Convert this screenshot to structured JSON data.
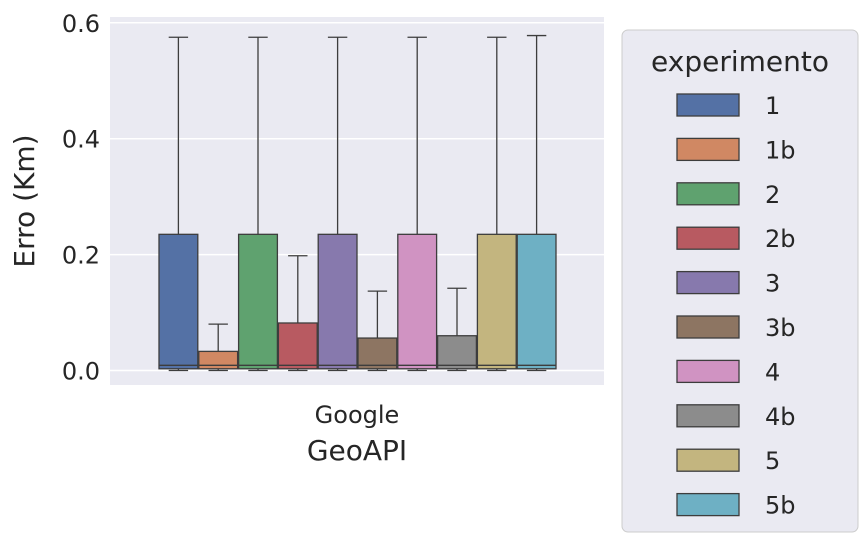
{
  "chart_data": {
    "type": "box",
    "title": "",
    "xlabel": "GeoAPI",
    "ylabel": "Erro (Km)",
    "categories": [
      "Google"
    ],
    "ylim": [
      -0.025,
      0.61
    ],
    "yticks": [
      0.0,
      0.2,
      0.4,
      0.6
    ],
    "ytick_labels": [
      "0.0",
      "0.2",
      "0.4",
      "0.6"
    ],
    "grid": true,
    "legend": {
      "title": "experimento",
      "position": "right"
    },
    "series": [
      {
        "name": "1",
        "color": "#5471a5",
        "whisker_low": 0.0,
        "q1": 0.003,
        "median": 0.009,
        "q3": 0.235,
        "whisker_high": 0.575
      },
      {
        "name": "1b",
        "color": "#d08863",
        "whisker_low": 0.0,
        "q1": 0.003,
        "median": 0.009,
        "q3": 0.033,
        "whisker_high": 0.08
      },
      {
        "name": "2",
        "color": "#5fa26f",
        "whisker_low": 0.0,
        "q1": 0.003,
        "median": 0.009,
        "q3": 0.235,
        "whisker_high": 0.575
      },
      {
        "name": "2b",
        "color": "#b85a61",
        "whisker_low": 0.0,
        "q1": 0.003,
        "median": 0.009,
        "q3": 0.082,
        "whisker_high": 0.198
      },
      {
        "name": "3",
        "color": "#8779ad",
        "whisker_low": 0.0,
        "q1": 0.003,
        "median": 0.009,
        "q3": 0.235,
        "whisker_high": 0.575
      },
      {
        "name": "3b",
        "color": "#8d7562",
        "whisker_low": 0.0,
        "q1": 0.003,
        "median": 0.009,
        "q3": 0.056,
        "whisker_high": 0.137
      },
      {
        "name": "4",
        "color": "#d093c2",
        "whisker_low": 0.0,
        "q1": 0.003,
        "median": 0.009,
        "q3": 0.235,
        "whisker_high": 0.575
      },
      {
        "name": "4b",
        "color": "#8c8c8c",
        "whisker_low": 0.0,
        "q1": 0.003,
        "median": 0.009,
        "q3": 0.06,
        "whisker_high": 0.142
      },
      {
        "name": "5",
        "color": "#c3b57f",
        "whisker_low": 0.0,
        "q1": 0.003,
        "median": 0.009,
        "q3": 0.235,
        "whisker_high": 0.575
      },
      {
        "name": "5b",
        "color": "#6eb0c4",
        "whisker_low": 0.0,
        "q1": 0.003,
        "median": 0.009,
        "q3": 0.235,
        "whisker_high": 0.578
      }
    ]
  }
}
